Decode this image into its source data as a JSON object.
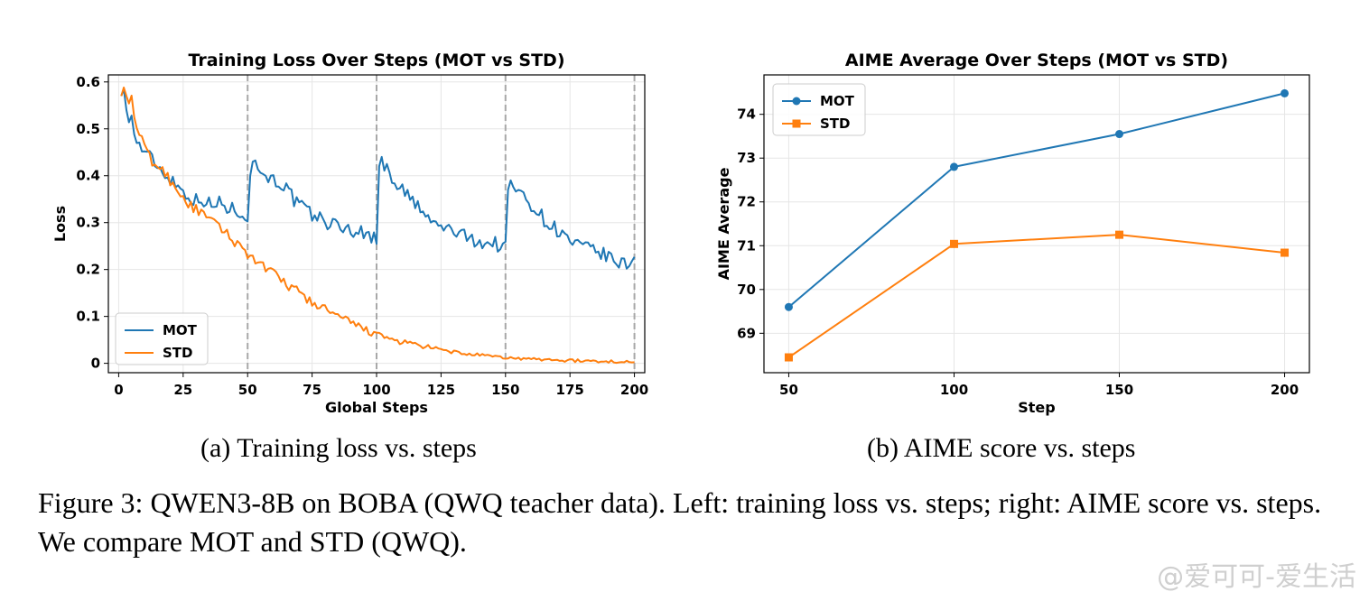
{
  "chart_data": [
    {
      "type": "line",
      "title": "Training Loss Over Steps (MOT vs STD)",
      "xlabel": "Global Steps",
      "ylabel": "Loss",
      "xlim": [
        -4,
        204
      ],
      "ylim": [
        -0.02,
        0.615
      ],
      "xticks": [
        0,
        25,
        50,
        75,
        100,
        125,
        150,
        175,
        200
      ],
      "yticks": [
        0.0,
        0.1,
        0.2,
        0.3,
        0.4,
        0.5,
        0.6
      ],
      "vlines": [
        50,
        100,
        150,
        200
      ],
      "grid": true,
      "legend_position": "lower-left",
      "series": [
        {
          "name": "MOT",
          "color": "#1f77b4",
          "anchors": [
            [
              1,
              0.57
            ],
            [
              2,
              0.585
            ],
            [
              3,
              0.54
            ],
            [
              5,
              0.52
            ],
            [
              7,
              0.47
            ],
            [
              9,
              0.46
            ],
            [
              11,
              0.44
            ],
            [
              13,
              0.44
            ],
            [
              15,
              0.42
            ],
            [
              17,
              0.41
            ],
            [
              19,
              0.4
            ],
            [
              21,
              0.39
            ],
            [
              23,
              0.38
            ],
            [
              25,
              0.365
            ],
            [
              27,
              0.36
            ],
            [
              29,
              0.35
            ],
            [
              31,
              0.345
            ],
            [
              33,
              0.35
            ],
            [
              35,
              0.34
            ],
            [
              37,
              0.33
            ],
            [
              39,
              0.345
            ],
            [
              41,
              0.34
            ],
            [
              43,
              0.325
            ],
            [
              45,
              0.33
            ],
            [
              47,
              0.325
            ],
            [
              49,
              0.32
            ],
            [
              50,
              0.31
            ],
            [
              51,
              0.4
            ],
            [
              52,
              0.43
            ],
            [
              54,
              0.415
            ],
            [
              57,
              0.405
            ],
            [
              60,
              0.39
            ],
            [
              63,
              0.385
            ],
            [
              66,
              0.365
            ],
            [
              69,
              0.34
            ],
            [
              72,
              0.33
            ],
            [
              75,
              0.315
            ],
            [
              78,
              0.31
            ],
            [
              81,
              0.3
            ],
            [
              84,
              0.295
            ],
            [
              87,
              0.29
            ],
            [
              90,
              0.285
            ],
            [
              93,
              0.28
            ],
            [
              96,
              0.275
            ],
            [
              99,
              0.27
            ],
            [
              100,
              0.26
            ],
            [
              101,
              0.42
            ],
            [
              102,
              0.44
            ],
            [
              104,
              0.41
            ],
            [
              107,
              0.39
            ],
            [
              110,
              0.37
            ],
            [
              113,
              0.35
            ],
            [
              116,
              0.335
            ],
            [
              119,
              0.31
            ],
            [
              122,
              0.3
            ],
            [
              125,
              0.29
            ],
            [
              128,
              0.285
            ],
            [
              131,
              0.28
            ],
            [
              134,
              0.27
            ],
            [
              137,
              0.265
            ],
            [
              140,
              0.26
            ],
            [
              143,
              0.255
            ],
            [
              146,
              0.255
            ],
            [
              149,
              0.25
            ],
            [
              150,
              0.245
            ],
            [
              151,
              0.37
            ],
            [
              152,
              0.39
            ],
            [
              154,
              0.37
            ],
            [
              157,
              0.355
            ],
            [
              160,
              0.34
            ],
            [
              163,
              0.32
            ],
            [
              166,
              0.3
            ],
            [
              169,
              0.29
            ],
            [
              172,
              0.275
            ],
            [
              175,
              0.26
            ],
            [
              178,
              0.25
            ],
            [
              181,
              0.245
            ],
            [
              184,
              0.24
            ],
            [
              187,
              0.235
            ],
            [
              190,
              0.225
            ],
            [
              193,
              0.215
            ],
            [
              196,
              0.21
            ],
            [
              198,
              0.215
            ],
            [
              200,
              0.22
            ]
          ],
          "noise": 0.016
        },
        {
          "name": "STD",
          "color": "#ff7f0e",
          "anchors": [
            [
              1,
              0.57
            ],
            [
              2,
              0.588
            ],
            [
              3,
              0.57
            ],
            [
              5,
              0.56
            ],
            [
              7,
              0.5
            ],
            [
              9,
              0.475
            ],
            [
              11,
              0.45
            ],
            [
              13,
              0.43
            ],
            [
              15,
              0.42
            ],
            [
              17,
              0.41
            ],
            [
              19,
              0.4
            ],
            [
              21,
              0.38
            ],
            [
              23,
              0.37
            ],
            [
              25,
              0.355
            ],
            [
              27,
              0.34
            ],
            [
              29,
              0.33
            ],
            [
              31,
              0.325
            ],
            [
              33,
              0.315
            ],
            [
              35,
              0.305
            ],
            [
              37,
              0.3
            ],
            [
              39,
              0.29
            ],
            [
              41,
              0.28
            ],
            [
              43,
              0.27
            ],
            [
              45,
              0.26
            ],
            [
              47,
              0.25
            ],
            [
              49,
              0.24
            ],
            [
              51,
              0.23
            ],
            [
              55,
              0.21
            ],
            [
              60,
              0.19
            ],
            [
              65,
              0.17
            ],
            [
              70,
              0.15
            ],
            [
              75,
              0.13
            ],
            [
              80,
              0.115
            ],
            [
              85,
              0.1
            ],
            [
              90,
              0.085
            ],
            [
              95,
              0.075
            ],
            [
              100,
              0.06
            ],
            [
              105,
              0.052
            ],
            [
              110,
              0.045
            ],
            [
              115,
              0.04
            ],
            [
              120,
              0.034
            ],
            [
              125,
              0.028
            ],
            [
              130,
              0.024
            ],
            [
              135,
              0.02
            ],
            [
              140,
              0.017
            ],
            [
              145,
              0.014
            ],
            [
              150,
              0.012
            ],
            [
              155,
              0.01
            ],
            [
              160,
              0.009
            ],
            [
              165,
              0.008
            ],
            [
              170,
              0.007
            ],
            [
              175,
              0.006
            ],
            [
              180,
              0.005
            ],
            [
              185,
              0.004
            ],
            [
              190,
              0.004
            ],
            [
              195,
              0.003
            ],
            [
              200,
              0.003
            ]
          ],
          "noise": 0.011
        }
      ]
    },
    {
      "type": "line",
      "title": "AIME Average Over Steps (MOT vs STD)",
      "xlabel": "Step",
      "ylabel": "AIME Average",
      "xlim": [
        42.5,
        207.5
      ],
      "ylim": [
        68.1,
        74.9
      ],
      "xticks": [
        50,
        100,
        150,
        200
      ],
      "yticks": [
        69,
        70,
        71,
        72,
        73,
        74
      ],
      "grid": true,
      "legend_position": "upper-left",
      "series": [
        {
          "name": "MOT",
          "color": "#1f77b4",
          "marker": "circle",
          "x": [
            50,
            100,
            150,
            200
          ],
          "values": [
            69.6,
            72.8,
            73.55,
            74.48
          ]
        },
        {
          "name": "STD",
          "color": "#ff7f0e",
          "marker": "square",
          "x": [
            50,
            100,
            150,
            200
          ],
          "values": [
            68.45,
            71.04,
            71.25,
            70.84
          ]
        }
      ]
    }
  ],
  "subcaptions": {
    "a": "(a) Training loss vs. steps",
    "b": "(b) AIME score vs. steps"
  },
  "caption": "Figure 3: QWEN3-8B on BOBA (QWQ teacher data). Left: training loss vs. steps; right: AIME score vs. steps. We compare MOT and STD (QWQ).",
  "watermark": "@爱可可-爱生活"
}
